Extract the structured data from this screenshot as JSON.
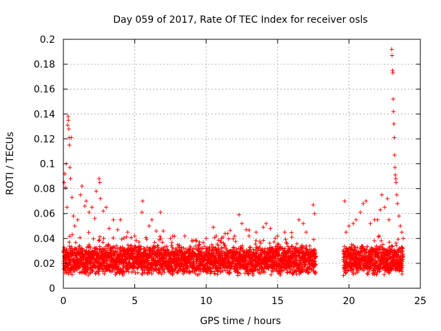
{
  "chart_data": {
    "type": "scatter",
    "title": "Day 059 of 2017, Rate Of TEC Index for receiver osls",
    "xlabel": "GPS time / hours",
    "ylabel": "ROTI / TECUs",
    "xlim": [
      0,
      25
    ],
    "ylim": [
      0,
      0.2
    ],
    "xticks": [
      "0",
      "5",
      "10",
      "15",
      "20",
      "25"
    ],
    "yticks": [
      "0",
      "0.02",
      "0.04",
      "0.06",
      "0.08",
      "0.1",
      "0.12",
      "0.14",
      "0.16",
      "0.18",
      "0.2"
    ],
    "grid": true,
    "marker": "+",
    "color": "#ff0000",
    "data_gaps_hours": [
      [
        17.7,
        19.6
      ]
    ],
    "typical_band": [
      0.01,
      0.035
    ],
    "series": [
      {
        "points": [
          [
            0.05,
            0.085
          ],
          [
            0.1,
            0.092
          ],
          [
            0.15,
            0.081
          ],
          [
            0.2,
            0.1
          ],
          [
            0.25,
            0.065
          ],
          [
            0.3,
            0.131
          ],
          [
            0.33,
            0.138
          ],
          [
            0.35,
            0.135
          ],
          [
            0.38,
            0.128
          ],
          [
            0.4,
            0.121
          ],
          [
            0.42,
            0.115
          ],
          [
            0.45,
            0.097
          ],
          [
            0.5,
            0.088
          ],
          [
            0.55,
            0.121
          ],
          [
            0.6,
            0.073
          ],
          [
            0.7,
            0.058
          ],
          [
            0.8,
            0.05
          ],
          [
            1.0,
            0.055
          ],
          [
            1.2,
            0.075
          ],
          [
            1.3,
            0.082
          ],
          [
            1.5,
            0.066
          ],
          [
            1.6,
            0.07
          ],
          [
            1.8,
            0.061
          ],
          [
            2.0,
            0.065
          ],
          [
            2.2,
            0.056
          ],
          [
            2.3,
            0.078
          ],
          [
            2.5,
            0.088
          ],
          [
            2.55,
            0.085
          ],
          [
            2.6,
            0.072
          ],
          [
            2.8,
            0.062
          ],
          [
            3.0,
            0.065
          ],
          [
            3.2,
            0.048
          ],
          [
            3.5,
            0.055
          ],
          [
            3.8,
            0.047
          ],
          [
            4.0,
            0.055
          ],
          [
            4.5,
            0.045
          ],
          [
            5.0,
            0.042
          ],
          [
            5.5,
            0.061
          ],
          [
            5.55,
            0.07
          ],
          [
            6.0,
            0.05
          ],
          [
            6.2,
            0.055
          ],
          [
            6.5,
            0.046
          ],
          [
            6.8,
            0.061
          ],
          [
            7.0,
            0.046
          ],
          [
            7.5,
            0.04
          ],
          [
            8.0,
            0.035
          ],
          [
            8.5,
            0.042
          ],
          [
            9.0,
            0.038
          ],
          [
            9.5,
            0.035
          ],
          [
            10.0,
            0.04
          ],
          [
            10.5,
            0.049
          ],
          [
            10.7,
            0.042
          ],
          [
            11.0,
            0.038
          ],
          [
            11.5,
            0.044
          ],
          [
            12.0,
            0.042
          ],
          [
            12.3,
            0.059
          ],
          [
            12.5,
            0.052
          ],
          [
            12.8,
            0.047
          ],
          [
            13.0,
            0.042
          ],
          [
            13.5,
            0.045
          ],
          [
            14.0,
            0.049
          ],
          [
            14.2,
            0.052
          ],
          [
            14.5,
            0.048
          ],
          [
            15.0,
            0.042
          ],
          [
            15.5,
            0.045
          ],
          [
            16.0,
            0.041
          ],
          [
            16.5,
            0.055
          ],
          [
            16.8,
            0.052
          ],
          [
            17.0,
            0.045
          ],
          [
            17.5,
            0.067
          ],
          [
            17.6,
            0.06
          ],
          [
            19.7,
            0.07
          ],
          [
            19.8,
            0.045
          ],
          [
            20.0,
            0.05
          ],
          [
            20.3,
            0.052
          ],
          [
            20.5,
            0.055
          ],
          [
            20.8,
            0.061
          ],
          [
            21.0,
            0.068
          ],
          [
            21.2,
            0.07
          ],
          [
            21.5,
            0.052
          ],
          [
            21.8,
            0.055
          ],
          [
            22.0,
            0.055
          ],
          [
            22.2,
            0.063
          ],
          [
            22.3,
            0.075
          ],
          [
            22.5,
            0.065
          ],
          [
            22.7,
            0.072
          ],
          [
            22.8,
            0.055
          ],
          [
            23.0,
            0.192
          ],
          [
            23.02,
            0.187
          ],
          [
            23.05,
            0.175
          ],
          [
            23.08,
            0.173
          ],
          [
            23.1,
            0.152
          ],
          [
            23.12,
            0.142
          ],
          [
            23.15,
            0.132
          ],
          [
            23.18,
            0.121
          ],
          [
            23.2,
            0.107
          ],
          [
            23.22,
            0.097
          ],
          [
            23.25,
            0.091
          ],
          [
            23.28,
            0.088
          ],
          [
            23.3,
            0.085
          ],
          [
            23.35,
            0.075
          ],
          [
            23.4,
            0.068
          ],
          [
            23.5,
            0.058
          ],
          [
            23.6,
            0.05
          ],
          [
            23.7,
            0.045
          ],
          [
            23.8,
            0.04
          ]
        ]
      }
    ]
  }
}
